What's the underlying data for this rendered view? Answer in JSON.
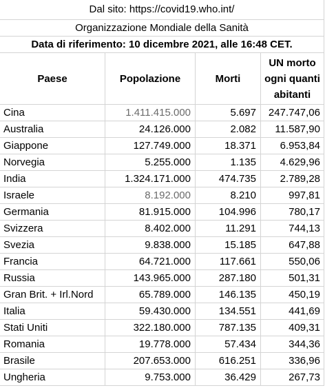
{
  "banner": {
    "source": "Dal sito: https://covid19.who.int/",
    "organization": "Organizzazione Mondiale della Sanità",
    "reference_date": "Data di riferimento: 10 dicembre  2021, alle 16:48 CET."
  },
  "headers": {
    "country": "Paese",
    "population": "Popolazione",
    "deaths": "Morti",
    "ratio_line1": "UN morto",
    "ratio_line2": "ogni quanti",
    "ratio_line3": "abitanti"
  },
  "rows": [
    {
      "country": "Cina",
      "population": "1.411.415.000",
      "deaths": "5.697",
      "ratio": "247.747,06",
      "population_grey": true
    },
    {
      "country": "Australia",
      "population": "24.126.000",
      "deaths": "2.082",
      "ratio": "11.587,90",
      "population_grey": false
    },
    {
      "country": "Giappone",
      "population": "127.749.000",
      "deaths": "18.371",
      "ratio": "6.953,84",
      "population_grey": false
    },
    {
      "country": "Norvegia",
      "population": "5.255.000",
      "deaths": "1.135",
      "ratio": "4.629,96",
      "population_grey": false
    },
    {
      "country": "India",
      "population": "1.324.171.000",
      "deaths": "474.735",
      "ratio": "2.789,28",
      "population_grey": false
    },
    {
      "country": "Israele",
      "population": "8.192.000",
      "deaths": "8.210",
      "ratio": "997,81",
      "population_grey": true
    },
    {
      "country": "Germania",
      "population": "81.915.000",
      "deaths": "104.996",
      "ratio": "780,17",
      "population_grey": false
    },
    {
      "country": "Svizzera",
      "population": "8.402.000",
      "deaths": "11.291",
      "ratio": "744,13",
      "population_grey": false
    },
    {
      "country": "Svezia",
      "population": "9.838.000",
      "deaths": "15.185",
      "ratio": "647,88",
      "population_grey": false
    },
    {
      "country": "Francia",
      "population": "64.721.000",
      "deaths": "117.661",
      "ratio": "550,06",
      "population_grey": false
    },
    {
      "country": "Russia",
      "population": "143.965.000",
      "deaths": "287.180",
      "ratio": "501,31",
      "population_grey": false
    },
    {
      "country": "Gran Brit. + Irl.Nord",
      "population": "65.789.000",
      "deaths": "146.135",
      "ratio": "450,19",
      "population_grey": false
    },
    {
      "country": "Italia",
      "population": "59.430.000",
      "deaths": "134.551",
      "ratio": "441,69",
      "population_grey": false
    },
    {
      "country": "Stati Uniti",
      "population": "322.180.000",
      "deaths": "787.135",
      "ratio": "409,31",
      "population_grey": false
    },
    {
      "country": "Romania",
      "population": "19.778.000",
      "deaths": "57.434",
      "ratio": "344,36",
      "population_grey": false
    },
    {
      "country": "Brasile",
      "population": "207.653.000",
      "deaths": "616.251",
      "ratio": "336,96",
      "population_grey": false
    },
    {
      "country": "Ungheria",
      "population": "9.753.000",
      "deaths": "36.429",
      "ratio": "267,73",
      "population_grey": false
    }
  ]
}
